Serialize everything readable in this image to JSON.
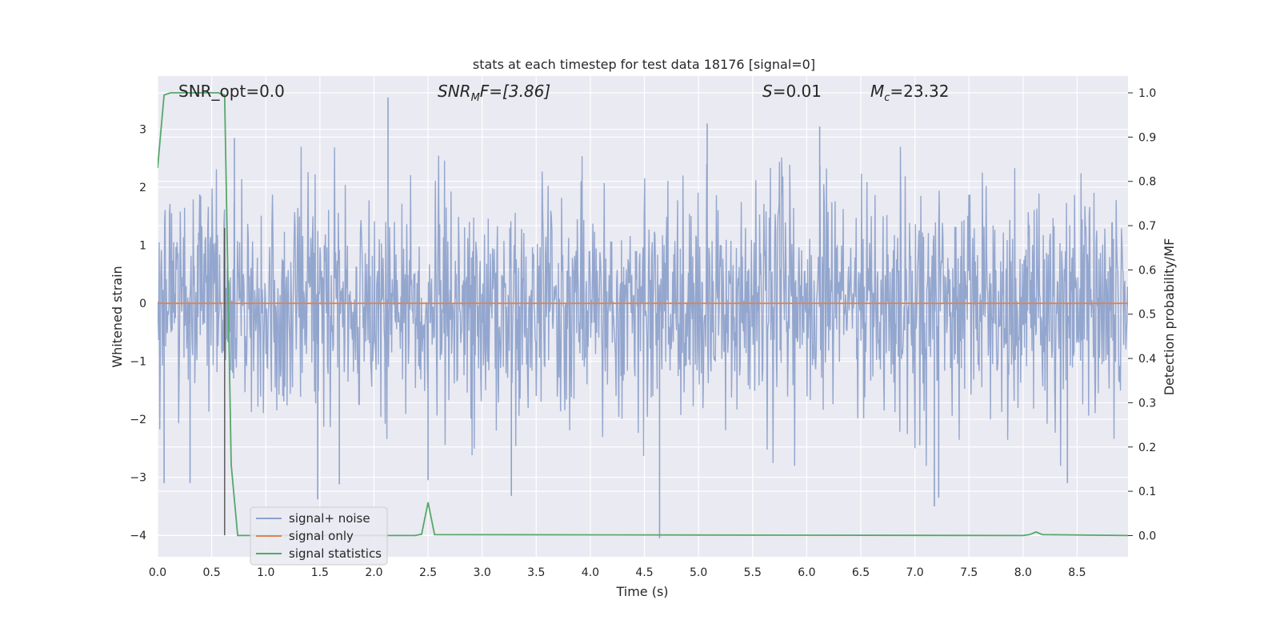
{
  "chart_data": {
    "type": "line",
    "title": "stats at each timestep for test data 18176 [signal=0]",
    "xlabel": "Time (s)",
    "ylabel_left": "Whitened strain",
    "ylabel_right": "Detection probability/MF",
    "xlim": [
      0.0,
      8.97
    ],
    "ylim_left": [
      -4.37,
      3.92
    ],
    "ylim_right": [
      -0.048,
      1.038
    ],
    "x_ticks": [
      "0.0",
      "0.5",
      "1.0",
      "1.5",
      "2.0",
      "2.5",
      "3.0",
      "3.5",
      "4.0",
      "4.5",
      "5.0",
      "5.5",
      "6.0",
      "6.5",
      "7.0",
      "7.5",
      "8.0",
      "8.5"
    ],
    "y_left_ticks": [
      "3",
      "2",
      "1",
      "0",
      "−1",
      "−2",
      "−3",
      "−4"
    ],
    "y_right_ticks": [
      "1.0",
      "0.9",
      "0.8",
      "0.7",
      "0.6",
      "0.5",
      "0.4",
      "0.3",
      "0.2",
      "0.1",
      "0.0"
    ],
    "grid": true,
    "legend_position": "lower-left",
    "annotations": {
      "snr_opt": "SNR_opt=0.0",
      "snr_mf_name": "SNR",
      "snr_mf_sub": "M",
      "snr_mf_rest": "F=[3.86]",
      "s_name": "S",
      "s_rest": "=0.01",
      "mc_name": "M",
      "mc_sub": "c",
      "mc_rest": "=23.32"
    },
    "vline_x": 0.62,
    "vline_y": [
      -4.0,
      1.3
    ],
    "series": [
      {
        "name": "signal+ noise",
        "axis": "left",
        "color": "#8ea2cb",
        "kind": "noise",
        "envelope_typical": [
          -1.5,
          1.5
        ],
        "notable_spikes": [
          {
            "x": 0.06,
            "y": -3.1
          },
          {
            "x": 0.3,
            "y": -3.1
          },
          {
            "x": 1.48,
            "y": -3.38
          },
          {
            "x": 1.68,
            "y": -3.12
          },
          {
            "x": 2.13,
            "y": 3.55
          },
          {
            "x": 0.71,
            "y": 2.85
          },
          {
            "x": 2.5,
            "y": -3.05
          },
          {
            "x": 3.27,
            "y": -3.32
          },
          {
            "x": 4.64,
            "y": -4.05
          },
          {
            "x": 5.08,
            "y": 3.1
          },
          {
            "x": 6.12,
            "y": 3.05
          },
          {
            "x": 7.18,
            "y": -3.5
          },
          {
            "x": 7.22,
            "y": -3.35
          },
          {
            "x": 8.41,
            "y": -3.1
          }
        ]
      },
      {
        "name": "signal only",
        "axis": "left",
        "color": "#dd8452",
        "x": [
          0.0,
          8.97
        ],
        "y": [
          0.0,
          0.0
        ]
      },
      {
        "name": "signal statistics",
        "axis": "right",
        "color": "#55a868",
        "x": [
          0.0,
          0.06,
          0.12,
          0.2,
          0.56,
          0.62,
          0.68,
          0.74,
          2.38,
          2.44,
          2.5,
          2.56,
          8.0,
          8.06,
          8.12,
          8.18,
          8.97
        ],
        "y": [
          0.83,
          0.995,
          1.0,
          1.0,
          1.0,
          0.995,
          0.16,
          0.0,
          0.0,
          0.003,
          0.075,
          0.002,
          0.0,
          0.002,
          0.008,
          0.002,
          0.0
        ]
      }
    ]
  }
}
